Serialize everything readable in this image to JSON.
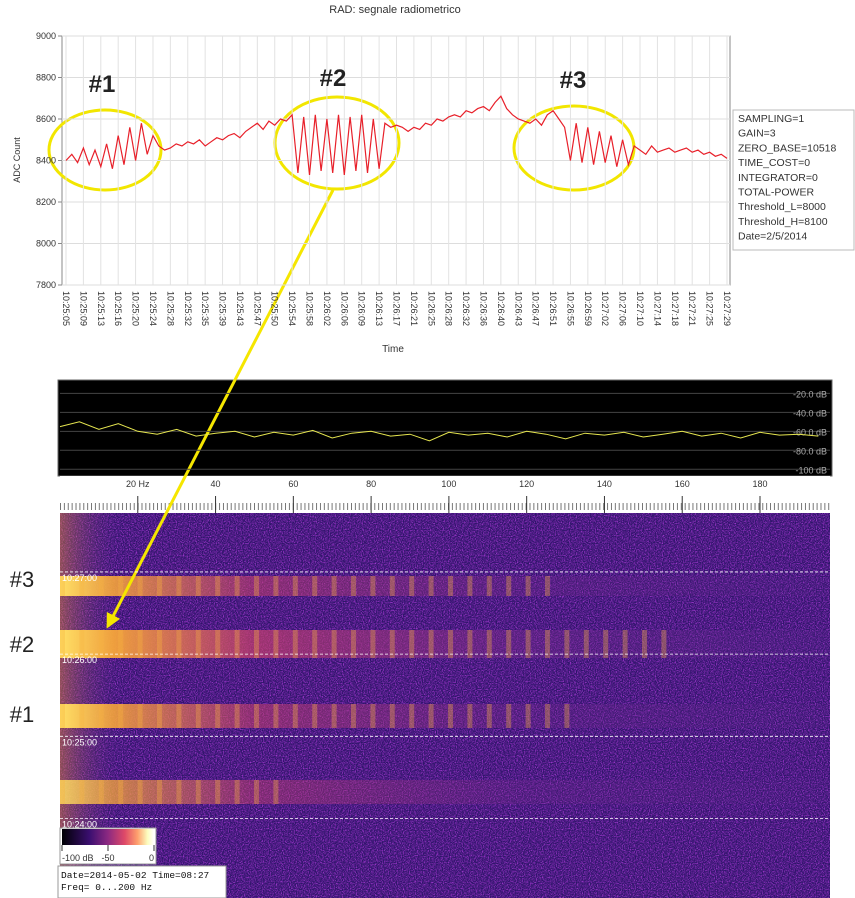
{
  "chart_data": [
    {
      "type": "line",
      "title": "RAD: segnale radiometrico",
      "x_label": "Time",
      "y_label": "ADC Count",
      "color": "#e8202a",
      "grid": true,
      "categories": [
        "10:25:05",
        null,
        null,
        "10:25:09",
        null,
        null,
        "10:25:13",
        null,
        null,
        "10:25:16",
        null,
        null,
        "10:25:20",
        null,
        null,
        "10:25:24",
        null,
        null,
        "10:25:28",
        null,
        null,
        "10:25:32",
        null,
        null,
        "10:25:35",
        null,
        null,
        "10:25:39",
        null,
        null,
        "10:25:43",
        null,
        null,
        "10:25:47",
        null,
        null,
        "10:25:50",
        null,
        null,
        "10:25:54",
        null,
        null,
        "10:25:58",
        null,
        null,
        "10:26:02",
        null,
        null,
        "10:26:06",
        null,
        null,
        "10:26:09",
        null,
        null,
        "10:26:13",
        null,
        null,
        "10:26:17",
        null,
        null,
        "10:26:21",
        null,
        null,
        "10:26:25",
        null,
        null,
        "10:26:28",
        null,
        null,
        "10:26:32",
        null,
        null,
        "10:26:36",
        null,
        null,
        "10:26:40",
        null,
        null,
        "10:26:43",
        null,
        null,
        "10:26:47",
        null,
        null,
        "10:26:51",
        null,
        null,
        "10:26:55",
        null,
        null,
        "10:26:59",
        null,
        null,
        "10:27:02",
        null,
        null,
        "10:27:06",
        null,
        null,
        "10:27:10",
        null,
        null,
        "10:27:14",
        null,
        null,
        "10:27:18",
        null,
        null,
        "10:27:21",
        null,
        null,
        "10:27:25",
        null,
        null,
        "10:27:29"
      ],
      "values": [
        8400,
        8430,
        8390,
        8460,
        8380,
        8450,
        8370,
        8480,
        8360,
        8520,
        8380,
        8560,
        8400,
        8580,
        8430,
        8520,
        8470,
        8450,
        8460,
        8480,
        8470,
        8490,
        8480,
        8500,
        8470,
        8490,
        8510,
        8500,
        8520,
        8530,
        8510,
        8540,
        8560,
        8580,
        8550,
        8590,
        8570,
        8600,
        8590,
        8620,
        8340,
        8610,
        8330,
        8620,
        8350,
        8600,
        8340,
        8620,
        8330,
        8610,
        8350,
        8620,
        8340,
        8600,
        8360,
        8580,
        8560,
        8570,
        8560,
        8540,
        8560,
        8550,
        8580,
        8570,
        8600,
        8590,
        8610,
        8620,
        8610,
        8640,
        8630,
        8650,
        8660,
        8640,
        8680,
        8710,
        8650,
        8620,
        8600,
        8590,
        8580,
        8600,
        8570,
        8620,
        8640,
        8600,
        8560,
        8400,
        8580,
        8390,
        8560,
        8380,
        8540,
        8390,
        8520,
        8370,
        8500,
        8380,
        8470,
        8450,
        8430,
        8470,
        8440,
        8450,
        8460,
        8440,
        8450,
        8460,
        8440,
        8450,
        8430,
        8440,
        8420,
        8430,
        8410
      ],
      "ylim": [
        7800,
        9000
      ],
      "yticks": [
        7800,
        8000,
        8200,
        8400,
        8600,
        8800,
        9000
      ],
      "info": [
        "SAMPLING=1",
        "GAIN=3",
        "ZERO_BASE=10518",
        "TIME_COST=0",
        "INTEGRATOR=0",
        "TOTAL-POWER",
        "Threshold_L=8000",
        "Threshold_H=8100",
        "Date=2/5/2014"
      ],
      "annotations": [
        "#1",
        "#2",
        "#3"
      ]
    },
    {
      "type": "line",
      "color": "#e6e650",
      "x": [
        0,
        5,
        10,
        15,
        20,
        25,
        30,
        35,
        40,
        45,
        50,
        55,
        60,
        65,
        70,
        75,
        80,
        85,
        90,
        95,
        100,
        105,
        110,
        115,
        120,
        125,
        130,
        135,
        140,
        145,
        150,
        155,
        160,
        165,
        170,
        175,
        180,
        185,
        190,
        195
      ],
      "values": [
        -55,
        -50,
        -58,
        -52,
        -60,
        -63,
        -58,
        -65,
        -62,
        -60,
        -66,
        -61,
        -64,
        -59,
        -67,
        -62,
        -60,
        -65,
        -63,
        -70,
        -61,
        -64,
        -62,
        -66,
        -60,
        -63,
        -68,
        -62,
        -64,
        -61,
        -66,
        -63,
        -60,
        -65,
        -62,
        -67,
        -61,
        -64,
        -63,
        -65
      ],
      "xlim": [
        0,
        198
      ],
      "ylim": [
        -105,
        -8
      ],
      "grid": true,
      "yticks": [
        {
          "value": -20,
          "label": "-20.0 dB"
        },
        {
          "value": -40,
          "label": "-40.0 dB"
        },
        {
          "value": -60,
          "label": "-60.0 dB"
        },
        {
          "value": -80,
          "label": "-80.0 dB"
        },
        {
          "value": -100,
          "label": "-100 dB"
        }
      ]
    },
    {
      "type": "spectrogram",
      "xlim": [
        0,
        198
      ],
      "xticks": [
        {
          "value": 20,
          "label": "20 Hz"
        },
        40,
        60,
        80,
        100,
        120,
        140,
        160,
        180
      ],
      "ylim": [
        37382,
        37663
      ],
      "yticks": [
        {
          "value": 37440,
          "label": "10:24:00"
        },
        {
          "value": 37500,
          "label": "10:25:00"
        },
        {
          "value": 37560,
          "label": "10:26:00"
        },
        {
          "value": 37620,
          "label": "10:27:00"
        }
      ],
      "colorbar": {
        "lim": [
          -100,
          0
        ],
        "ticks": [
          {
            "value": -100,
            "label": "-100 dB"
          },
          -50,
          0
        ]
      },
      "info": [
        "Date=2014-05-02 Time=08:27",
        "Freq= 0...200 Hz"
      ],
      "annotations": [
        "#3",
        "#2",
        "#1"
      ]
    }
  ]
}
